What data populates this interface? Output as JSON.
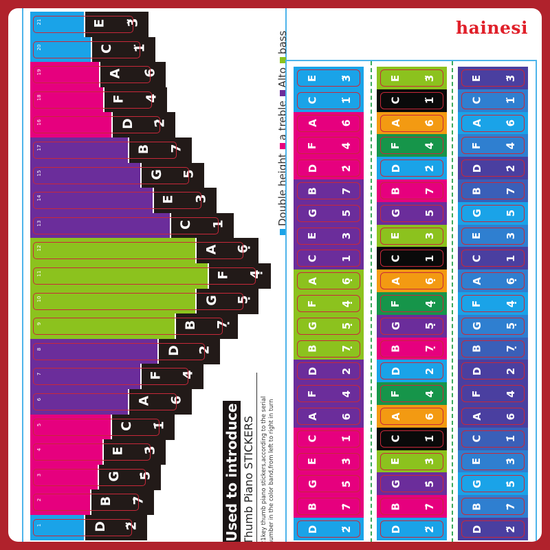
{
  "brand": "hainesi",
  "colors": {
    "frame": "#b0222c",
    "blue": "#1aa3e8",
    "pink": "#e6007e",
    "purple": "#6b2d9b",
    "green": "#8cc21e",
    "black": "#221a18",
    "orange": "#f39a12",
    "dark_green": "#16954a",
    "key_outline": "#c8283a"
  },
  "legend": {
    "items": [
      {
        "label": "Double height",
        "color": "#1aa3e8"
      },
      {
        "label": "a treble",
        "color": "#e6007e"
      },
      {
        "label": "Alto",
        "color": "#6b2d9b"
      },
      {
        "label": "bass",
        "color": "#8cc21e"
      }
    ]
  },
  "intro": {
    "title": "Used to introduce",
    "subtitle": "Thumb Piano STICKERS",
    "description": "21key thumb piano stickers,according to the serial number in the color band,from left to right in turn"
  },
  "keys": [
    {
      "num": "21",
      "note": "E",
      "value": "3̈",
      "color": "#1aa3e8",
      "colorW": 78,
      "blackW": 94
    },
    {
      "num": "20",
      "note": "C",
      "value": "1̈",
      "color": "#1aa3e8",
      "colorW": 88,
      "blackW": 94
    },
    {
      "num": "19",
      "note": "A",
      "value": "6̇",
      "color": "#e6007e",
      "colorW": 100,
      "blackW": 97
    },
    {
      "num": "18",
      "note": "F",
      "value": "4̇",
      "color": "#e6007e",
      "colorW": 106,
      "blackW": 93
    },
    {
      "num": "16",
      "note": "D",
      "value": "2̇",
      "color": "#e6007e",
      "colorW": 118,
      "blackW": 93
    },
    {
      "num": "17",
      "note": "B",
      "value": "7",
      "color": "#6b2d9b",
      "colorW": 142,
      "blackW": 93
    },
    {
      "num": "15",
      "note": "G",
      "value": "5",
      "color": "#6b2d9b",
      "colorW": 160,
      "blackW": 93
    },
    {
      "num": "14",
      "note": "E",
      "value": "3",
      "color": "#6b2d9b",
      "colorW": 178,
      "blackW": 93
    },
    {
      "num": "13",
      "note": "C",
      "value": "1",
      "color": "#6b2d9b",
      "colorW": 203,
      "blackW": 93
    },
    {
      "num": "12",
      "note": "A",
      "value": "6̣",
      "color": "#8cc21e",
      "colorW": 240,
      "blackW": 92
    },
    {
      "num": "11",
      "note": "F",
      "value": "4̣",
      "color": "#8cc21e",
      "colorW": 258,
      "blackW": 92
    },
    {
      "num": "10",
      "note": "G",
      "value": "5̣",
      "color": "#8cc21e",
      "colorW": 240,
      "blackW": 92
    },
    {
      "num": "9",
      "note": "B",
      "value": "7̣",
      "color": "#8cc21e",
      "colorW": 210,
      "blackW": 92
    },
    {
      "num": "8",
      "note": "D",
      "value": "2",
      "color": "#6b2d9b",
      "colorW": 185,
      "blackW": 91
    },
    {
      "num": "7",
      "note": "F",
      "value": "4",
      "color": "#6b2d9b",
      "colorW": 160,
      "blackW": 92
    },
    {
      "num": "6",
      "note": "A",
      "value": "6",
      "color": "#6b2d9b",
      "colorW": 142,
      "blackW": 93
    },
    {
      "num": "5",
      "note": "C",
      "value": "1̇",
      "color": "#e6007e",
      "colorW": 117,
      "blackW": 93
    },
    {
      "num": "4",
      "note": "E",
      "value": "3̇",
      "color": "#e6007e",
      "colorW": 105,
      "blackW": 92
    },
    {
      "num": "3",
      "note": "G",
      "value": "5̇",
      "color": "#e6007e",
      "colorW": 98,
      "blackW": 92
    },
    {
      "num": "2",
      "note": "B",
      "value": "7̇",
      "color": "#e6007e",
      "colorW": 87,
      "blackW": 93
    },
    {
      "num": "1",
      "note": "D",
      "value": "2̈",
      "color": "#1aa3e8",
      "colorW": 78,
      "blackW": 92
    }
  ],
  "sticker_columns": [
    {
      "name": "rainbow-band",
      "cells": [
        {
          "note": "E",
          "value": "3̈",
          "color": "#1aa3e8"
        },
        {
          "note": "C",
          "value": "1̈",
          "color": "#1aa3e8"
        },
        {
          "note": "A",
          "value": "6̇",
          "color": "#e6007e"
        },
        {
          "note": "F",
          "value": "4̇",
          "color": "#e6007e"
        },
        {
          "note": "D",
          "value": "2̇",
          "color": "#e6007e"
        },
        {
          "note": "B",
          "value": "7",
          "color": "#6b2d9b"
        },
        {
          "note": "G",
          "value": "5",
          "color": "#6b2d9b"
        },
        {
          "note": "E",
          "value": "3",
          "color": "#6b2d9b"
        },
        {
          "note": "C",
          "value": "1",
          "color": "#6b2d9b"
        },
        {
          "note": "A",
          "value": "6̣",
          "color": "#8cc21e"
        },
        {
          "note": "F",
          "value": "4̣",
          "color": "#8cc21e"
        },
        {
          "note": "G",
          "value": "5̣",
          "color": "#8cc21e"
        },
        {
          "note": "B",
          "value": "7̣",
          "color": "#8cc21e"
        },
        {
          "note": "D",
          "value": "2",
          "color": "#6b2d9b"
        },
        {
          "note": "F",
          "value": "4",
          "color": "#6b2d9b"
        },
        {
          "note": "A",
          "value": "6",
          "color": "#6b2d9b"
        },
        {
          "note": "C",
          "value": "1̇",
          "color": "#e6007e"
        },
        {
          "note": "E",
          "value": "3̇",
          "color": "#e6007e"
        },
        {
          "note": "G",
          "value": "5̇",
          "color": "#e6007e"
        },
        {
          "note": "B",
          "value": "7̇",
          "color": "#e6007e"
        },
        {
          "note": "D",
          "value": "2̈",
          "color": "#1aa3e8"
        }
      ]
    },
    {
      "name": "multicolor-band",
      "cells": [
        {
          "note": "E",
          "value": "3̈",
          "color": "#8cc21e"
        },
        {
          "note": "C",
          "value": "1̈",
          "color": "#0a0a0a"
        },
        {
          "note": "A",
          "value": "6̇",
          "color": "#f39a12"
        },
        {
          "note": "F",
          "value": "4̇",
          "color": "#16954a"
        },
        {
          "note": "D",
          "value": "2̇",
          "color": "#1aa3e8"
        },
        {
          "note": "B",
          "value": "7",
          "color": "#e6007e"
        },
        {
          "note": "G",
          "value": "5",
          "color": "#6b2d9b"
        },
        {
          "note": "E",
          "value": "3",
          "color": "#8cc21e"
        },
        {
          "note": "C",
          "value": "1",
          "color": "#0a0a0a"
        },
        {
          "note": "A",
          "value": "6̣",
          "color": "#f39a12"
        },
        {
          "note": "F",
          "value": "4̣",
          "color": "#16954a"
        },
        {
          "note": "G",
          "value": "5̣",
          "color": "#6b2d9b"
        },
        {
          "note": "B",
          "value": "7̣",
          "color": "#e6007e"
        },
        {
          "note": "D",
          "value": "2",
          "color": "#1aa3e8"
        },
        {
          "note": "F",
          "value": "4",
          "color": "#16954a"
        },
        {
          "note": "A",
          "value": "6",
          "color": "#f39a12"
        },
        {
          "note": "C",
          "value": "1̇",
          "color": "#0a0a0a"
        },
        {
          "note": "E",
          "value": "3̇",
          "color": "#8cc21e"
        },
        {
          "note": "G",
          "value": "5̇",
          "color": "#6b2d9b"
        },
        {
          "note": "B",
          "value": "7̇",
          "color": "#e6007e"
        },
        {
          "note": "D",
          "value": "2̈",
          "color": "#1aa3e8"
        }
      ]
    },
    {
      "name": "gradient-band",
      "cells": [
        {
          "note": "E",
          "value": "3̈",
          "color": "#4a3fa0"
        },
        {
          "note": "C",
          "value": "1̈",
          "color": "#2f7fd0"
        },
        {
          "note": "A",
          "value": "6̇",
          "color": "#1aa3e8"
        },
        {
          "note": "F",
          "value": "4̇",
          "color": "#2f7fd0"
        },
        {
          "note": "D",
          "value": "2̇",
          "color": "#4a3fa0"
        },
        {
          "note": "B",
          "value": "7",
          "color": "#3a5fb8"
        },
        {
          "note": "G",
          "value": "5",
          "color": "#1aa3e8"
        },
        {
          "note": "E",
          "value": "3",
          "color": "#2f7fd0"
        },
        {
          "note": "C",
          "value": "1",
          "color": "#4a3fa0"
        },
        {
          "note": "A",
          "value": "6̣",
          "color": "#2f7fd0"
        },
        {
          "note": "F",
          "value": "4̣",
          "color": "#1aa3e8"
        },
        {
          "note": "G",
          "value": "5̣",
          "color": "#2f7fd0"
        },
        {
          "note": "B",
          "value": "7̣",
          "color": "#3a5fb8"
        },
        {
          "note": "D",
          "value": "2",
          "color": "#4a3fa0"
        },
        {
          "note": "F",
          "value": "4",
          "color": "#4a3fa0"
        },
        {
          "note": "A",
          "value": "6",
          "color": "#4a3fa0"
        },
        {
          "note": "C",
          "value": "1̇",
          "color": "#3a5fb8"
        },
        {
          "note": "E",
          "value": "3̇",
          "color": "#2f7fd0"
        },
        {
          "note": "G",
          "value": "5̇",
          "color": "#1aa3e8"
        },
        {
          "note": "B",
          "value": "7̇",
          "color": "#2f7fd0"
        },
        {
          "note": "D",
          "value": "2̈",
          "color": "#4a3fa0"
        }
      ]
    }
  ]
}
